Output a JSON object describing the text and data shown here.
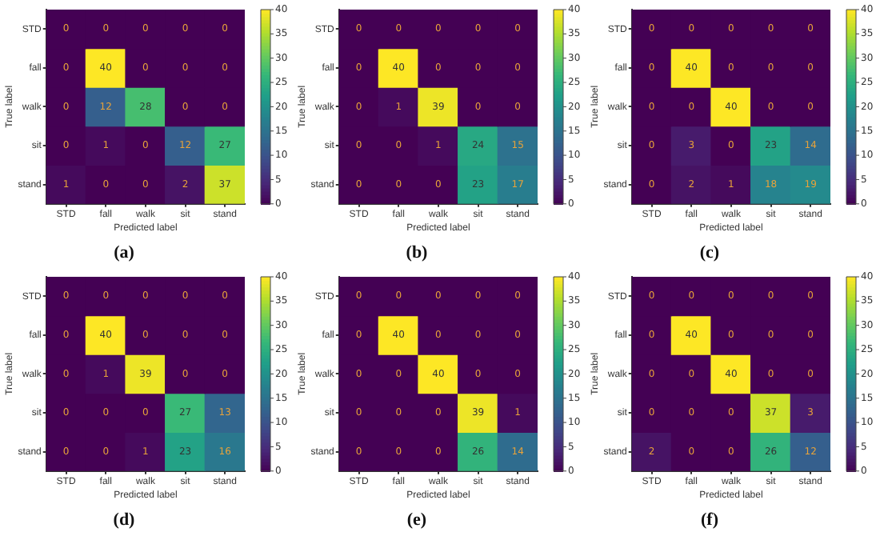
{
  "chart_data": [
    {
      "type": "heatmap",
      "title": "(a)",
      "xlabel": "Predicted label",
      "ylabel": "True label",
      "categories": [
        "STD",
        "fall",
        "walk",
        "sit",
        "stand"
      ],
      "y_categories": [
        "STD",
        "fall",
        "walk",
        "sit",
        "stand"
      ],
      "cells": [
        [
          0,
          0,
          0,
          0,
          0
        ],
        [
          0,
          40,
          0,
          0,
          0
        ],
        [
          0,
          12,
          28,
          0,
          0
        ],
        [
          0,
          1,
          0,
          12,
          27
        ],
        [
          1,
          0,
          0,
          2,
          37
        ]
      ],
      "data_labels": true,
      "clim": [
        0,
        40
      ],
      "cticks": [
        0,
        5,
        10,
        15,
        20,
        25,
        30,
        35,
        40
      ]
    },
    {
      "type": "heatmap",
      "title": "(b)",
      "xlabel": "Predicted label",
      "ylabel": "True label",
      "categories": [
        "STD",
        "fall",
        "walk",
        "sit",
        "stand"
      ],
      "y_categories": [
        "STD",
        "fall",
        "walk",
        "sit",
        "stand"
      ],
      "cells": [
        [
          0,
          0,
          0,
          0,
          0
        ],
        [
          0,
          40,
          0,
          0,
          0
        ],
        [
          0,
          1,
          39,
          0,
          0
        ],
        [
          0,
          0,
          1,
          24,
          15
        ],
        [
          0,
          0,
          0,
          23,
          17
        ]
      ],
      "data_labels": true,
      "clim": [
        0,
        40
      ],
      "cticks": [
        0,
        5,
        10,
        15,
        20,
        25,
        30,
        35,
        40
      ]
    },
    {
      "type": "heatmap",
      "title": "(c)",
      "xlabel": "Predicted label",
      "ylabel": "True label",
      "categories": [
        "STD",
        "fall",
        "walk",
        "sit",
        "stand"
      ],
      "y_categories": [
        "STD",
        "fall",
        "walk",
        "sit",
        "stand"
      ],
      "cells": [
        [
          0,
          0,
          0,
          0,
          0
        ],
        [
          0,
          40,
          0,
          0,
          0
        ],
        [
          0,
          0,
          40,
          0,
          0
        ],
        [
          0,
          3,
          0,
          23,
          14
        ],
        [
          0,
          2,
          1,
          18,
          19
        ]
      ],
      "data_labels": true,
      "clim": [
        0,
        40
      ],
      "cticks": [
        0,
        5,
        10,
        15,
        20,
        25,
        30,
        35,
        40
      ]
    },
    {
      "type": "heatmap",
      "title": "(d)",
      "xlabel": "Predicted label",
      "ylabel": "True label",
      "categories": [
        "STD",
        "fall",
        "walk",
        "sit",
        "stand"
      ],
      "y_categories": [
        "STD",
        "fall",
        "walk",
        "sit",
        "stand"
      ],
      "cells": [
        [
          0,
          0,
          0,
          0,
          0
        ],
        [
          0,
          40,
          0,
          0,
          0
        ],
        [
          0,
          1,
          39,
          0,
          0
        ],
        [
          0,
          0,
          0,
          27,
          13
        ],
        [
          0,
          0,
          1,
          23,
          16
        ]
      ],
      "data_labels": true,
      "clim": [
        0,
        40
      ],
      "cticks": [
        0,
        5,
        10,
        15,
        20,
        25,
        30,
        35,
        40
      ]
    },
    {
      "type": "heatmap",
      "title": "(e)",
      "xlabel": "Predicted label",
      "ylabel": "True label",
      "categories": [
        "STD",
        "fall",
        "walk",
        "sit",
        "stand"
      ],
      "y_categories": [
        "STD",
        "fall",
        "walk",
        "sit",
        "stand"
      ],
      "cells": [
        [
          0,
          0,
          0,
          0,
          0
        ],
        [
          0,
          40,
          0,
          0,
          0
        ],
        [
          0,
          0,
          40,
          0,
          0
        ],
        [
          0,
          0,
          0,
          39,
          1
        ],
        [
          0,
          0,
          0,
          26,
          14
        ]
      ],
      "data_labels": true,
      "clim": [
        0,
        40
      ],
      "cticks": [
        0,
        5,
        10,
        15,
        20,
        25,
        30,
        35,
        40
      ]
    },
    {
      "type": "heatmap",
      "title": "(f)",
      "xlabel": "Predicted label",
      "ylabel": "True label",
      "categories": [
        "STD",
        "fall",
        "walk",
        "sit",
        "stand"
      ],
      "y_categories": [
        "STD",
        "fall",
        "walk",
        "sit",
        "stand"
      ],
      "cells": [
        [
          0,
          0,
          0,
          0,
          0
        ],
        [
          0,
          40,
          0,
          0,
          0
        ],
        [
          0,
          0,
          40,
          0,
          0
        ],
        [
          0,
          0,
          0,
          37,
          3
        ],
        [
          2,
          0,
          0,
          26,
          12
        ]
      ],
      "data_labels": true,
      "clim": [
        0,
        40
      ],
      "cticks": [
        0,
        5,
        10,
        15,
        20,
        25,
        30,
        35,
        40
      ]
    }
  ]
}
